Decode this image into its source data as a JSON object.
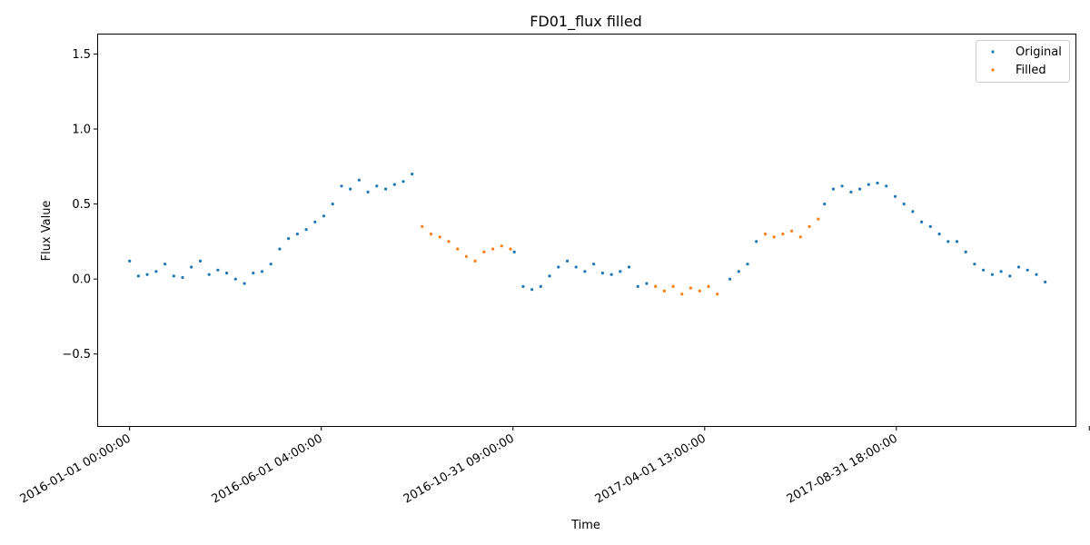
{
  "chart_data": {
    "type": "scatter",
    "title": "FD01_flux filled",
    "xlabel": "Time",
    "ylabel": "Flux Value",
    "x_range": [
      "2015-12-07",
      "2018-01-20"
    ],
    "ylim": [
      -0.98,
      1.63
    ],
    "grid": false,
    "legend_placement": "top-right",
    "x_ticks": [
      {
        "date": "2016-01-01",
        "label": "2016-01-01 00:00:00"
      },
      {
        "date": "2016-06-01",
        "label": "2016-06-01 04:00:00"
      },
      {
        "date": "2016-10-31",
        "label": "2016-10-31 09:00:00"
      },
      {
        "date": "2017-04-01",
        "label": "2017-04-01 13:00:00"
      },
      {
        "date": "2017-08-31",
        "label": "2017-08-31 18:00:00"
      },
      {
        "date": "2018-01-31",
        "label": ""
      }
    ],
    "y_ticks": [
      {
        "value": -0.5,
        "label": "−0.5"
      },
      {
        "value": 0.0,
        "label": "0.0"
      },
      {
        "value": 0.5,
        "label": "0.5"
      },
      {
        "value": 1.0,
        "label": "1.0"
      },
      {
        "value": 1.5,
        "label": "1.5"
      }
    ],
    "series": [
      {
        "name": "Original",
        "color": "#1f77b4",
        "points": [
          [
            "2016-01-01",
            0.12
          ],
          [
            "2016-01-08",
            0.02
          ],
          [
            "2016-01-15",
            0.03
          ],
          [
            "2016-01-22",
            0.05
          ],
          [
            "2016-01-29",
            0.1
          ],
          [
            "2016-02-05",
            0.02
          ],
          [
            "2016-02-12",
            0.01
          ],
          [
            "2016-02-19",
            0.08
          ],
          [
            "2016-02-26",
            0.12
          ],
          [
            "2016-03-04",
            0.03
          ],
          [
            "2016-03-11",
            0.06
          ],
          [
            "2016-03-18",
            0.04
          ],
          [
            "2016-03-25",
            0.0
          ],
          [
            "2016-04-01",
            -0.03
          ],
          [
            "2016-04-08",
            0.04
          ],
          [
            "2016-04-15",
            0.05
          ],
          [
            "2016-04-22",
            0.1
          ],
          [
            "2016-04-29",
            0.2
          ],
          [
            "2016-05-06",
            0.27
          ],
          [
            "2016-05-13",
            0.3
          ],
          [
            "2016-05-20",
            0.33
          ],
          [
            "2016-05-27",
            0.38
          ],
          [
            "2016-06-03",
            0.42
          ],
          [
            "2016-06-10",
            0.5
          ],
          [
            "2016-06-17",
            0.62
          ],
          [
            "2016-06-24",
            0.6
          ],
          [
            "2016-07-01",
            0.66
          ],
          [
            "2016-07-08",
            0.58
          ],
          [
            "2016-07-15",
            0.62
          ],
          [
            "2016-07-22",
            0.6
          ],
          [
            "2016-07-29",
            0.63
          ],
          [
            "2016-08-05",
            0.65
          ],
          [
            "2016-08-12",
            0.7
          ],
          [
            "2016-11-01",
            0.18
          ],
          [
            "2016-11-08",
            -0.05
          ],
          [
            "2016-11-15",
            -0.07
          ],
          [
            "2016-11-22",
            -0.05
          ],
          [
            "2016-11-29",
            0.02
          ],
          [
            "2016-12-06",
            0.08
          ],
          [
            "2016-12-13",
            0.12
          ],
          [
            "2016-12-20",
            0.08
          ],
          [
            "2016-12-27",
            0.05
          ],
          [
            "2017-01-03",
            0.1
          ],
          [
            "2017-01-10",
            0.04
          ],
          [
            "2017-01-17",
            0.03
          ],
          [
            "2017-01-24",
            0.05
          ],
          [
            "2017-01-31",
            0.08
          ],
          [
            "2017-02-07",
            -0.05
          ],
          [
            "2017-02-14",
            -0.03
          ],
          [
            "2017-04-21",
            0.0
          ],
          [
            "2017-04-28",
            0.05
          ],
          [
            "2017-05-05",
            0.1
          ],
          [
            "2017-05-12",
            0.25
          ],
          [
            "2017-07-05",
            0.5
          ],
          [
            "2017-07-12",
            0.6
          ],
          [
            "2017-07-19",
            0.62
          ],
          [
            "2017-07-26",
            0.58
          ],
          [
            "2017-08-02",
            0.6
          ],
          [
            "2017-08-09",
            0.63
          ],
          [
            "2017-08-16",
            0.64
          ],
          [
            "2017-08-23",
            0.62
          ],
          [
            "2017-08-30",
            0.55
          ],
          [
            "2017-09-06",
            0.5
          ],
          [
            "2017-09-13",
            0.45
          ],
          [
            "2017-09-20",
            0.38
          ],
          [
            "2017-09-27",
            0.35
          ],
          [
            "2017-10-04",
            0.3
          ],
          [
            "2017-10-11",
            0.25
          ],
          [
            "2017-10-18",
            0.25
          ],
          [
            "2017-10-25",
            0.18
          ],
          [
            "2017-11-01",
            0.1
          ],
          [
            "2017-11-08",
            0.06
          ],
          [
            "2017-11-15",
            0.03
          ],
          [
            "2017-11-22",
            0.05
          ],
          [
            "2017-11-29",
            0.02
          ],
          [
            "2017-12-06",
            0.08
          ],
          [
            "2017-12-13",
            0.06
          ],
          [
            "2017-12-20",
            0.03
          ],
          [
            "2017-12-27",
            -0.02
          ]
        ]
      },
      {
        "name": "Filled",
        "color": "#ff7f0e",
        "points": [
          [
            "2016-08-20",
            0.35
          ],
          [
            "2016-08-27",
            0.3
          ],
          [
            "2016-09-03",
            0.28
          ],
          [
            "2016-09-10",
            0.25
          ],
          [
            "2016-09-17",
            0.2
          ],
          [
            "2016-09-24",
            0.15
          ],
          [
            "2016-10-01",
            0.12
          ],
          [
            "2016-10-08",
            0.18
          ],
          [
            "2016-10-15",
            0.2
          ],
          [
            "2016-10-22",
            0.22
          ],
          [
            "2016-10-29",
            0.2
          ],
          [
            "2017-02-21",
            -0.05
          ],
          [
            "2017-02-28",
            -0.08
          ],
          [
            "2017-03-07",
            -0.05
          ],
          [
            "2017-03-14",
            -0.1
          ],
          [
            "2017-03-21",
            -0.06
          ],
          [
            "2017-03-28",
            -0.08
          ],
          [
            "2017-04-04",
            -0.05
          ],
          [
            "2017-04-11",
            -0.1
          ],
          [
            "2017-05-19",
            0.3
          ],
          [
            "2017-05-26",
            0.28
          ],
          [
            "2017-06-02",
            0.3
          ],
          [
            "2017-06-09",
            0.32
          ],
          [
            "2017-06-16",
            0.28
          ],
          [
            "2017-06-23",
            0.35
          ],
          [
            "2017-06-30",
            0.4
          ]
        ]
      }
    ]
  }
}
